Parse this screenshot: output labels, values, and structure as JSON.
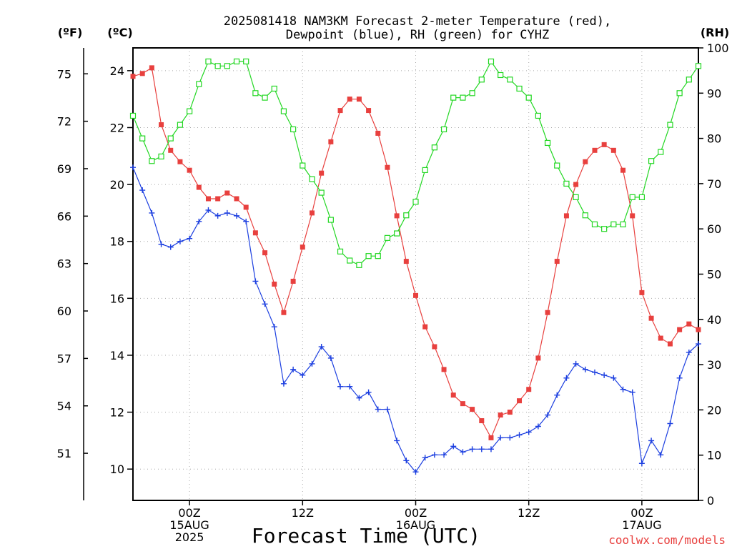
{
  "chart_data": {
    "type": "line",
    "title_lines": [
      "2025081418 NAM3KM Forecast 2-meter Temperature (red),",
      "Dewpoint (blue), RH (green) for CYHZ"
    ],
    "xlabel": "Forecast Time (UTC)",
    "credit": "coolwx.com/models",
    "units": {
      "fahrenheit": "(ºF)",
      "celsius": "(ºC)",
      "rh": "(RH)"
    },
    "x_ticks": [
      {
        "hour": 3,
        "lines": [
          "00Z",
          "15AUG",
          "2025"
        ]
      },
      {
        "hour": 15,
        "lines": [
          "12Z"
        ]
      },
      {
        "hour": 27,
        "lines": [
          "00Z",
          "16AUG"
        ]
      },
      {
        "hour": 39,
        "lines": [
          "12Z"
        ]
      },
      {
        "hour": 51,
        "lines": [
          "00Z",
          "17AUG"
        ]
      }
    ],
    "x_range": [
      -3,
      57
    ],
    "ylim_celsius": [
      8.9,
      24.8
    ],
    "celsius_ticks": [
      10,
      12,
      14,
      16,
      18,
      20,
      22,
      24
    ],
    "fahrenheit_ticks": [
      51,
      54,
      57,
      60,
      63,
      66,
      69,
      72,
      75
    ],
    "ylim_rh": [
      0,
      100
    ],
    "rh_ticks": [
      0,
      10,
      20,
      30,
      40,
      50,
      60,
      70,
      80,
      90,
      100
    ],
    "grid": true,
    "series": [
      {
        "name": "Temperature",
        "color": "#e8403e",
        "marker": "filled-square",
        "axis": "celsius",
        "x": [
          -3,
          -2,
          -1,
          0,
          1,
          2,
          3,
          4,
          5,
          6,
          7,
          8,
          9,
          10,
          11,
          12,
          13,
          14,
          15,
          16,
          17,
          18,
          19,
          20,
          21,
          22,
          23,
          24,
          25,
          26,
          27,
          28,
          29,
          30,
          31,
          32,
          33,
          34,
          35,
          36,
          37,
          38,
          39,
          40,
          41,
          42,
          43,
          44,
          45,
          46,
          47,
          48,
          49,
          50,
          51,
          52,
          53,
          54,
          55,
          56,
          57
        ],
        "values": [
          23.8,
          23.9,
          24.1,
          22.1,
          21.2,
          20.8,
          20.5,
          19.9,
          19.5,
          19.5,
          19.7,
          19.5,
          19.2,
          18.3,
          17.6,
          16.5,
          15.5,
          16.6,
          17.8,
          19.0,
          20.4,
          21.5,
          22.6,
          23.0,
          23.0,
          22.6,
          21.8,
          20.6,
          18.9,
          17.3,
          16.1,
          15.0,
          14.3,
          13.5,
          12.6,
          12.3,
          12.1,
          11.7,
          11.1,
          11.9,
          12.0,
          12.4,
          12.8,
          13.9,
          15.5,
          17.3,
          18.9,
          20.0,
          20.8,
          21.2,
          21.4,
          21.2,
          20.5,
          18.9,
          16.2,
          15.3,
          14.6,
          14.4,
          14.9,
          15.1,
          14.9
        ]
      },
      {
        "name": "Dewpoint",
        "color": "#1c3fe0",
        "marker": "plus",
        "axis": "celsius",
        "x": [
          -3,
          -2,
          -1,
          0,
          1,
          2,
          3,
          4,
          5,
          6,
          7,
          8,
          9,
          10,
          11,
          12,
          13,
          14,
          15,
          16,
          17,
          18,
          19,
          20,
          21,
          22,
          23,
          24,
          25,
          26,
          27,
          28,
          29,
          30,
          31,
          32,
          33,
          34,
          35,
          36,
          37,
          38,
          39,
          40,
          41,
          42,
          43,
          44,
          45,
          46,
          47,
          48,
          49,
          50,
          51,
          52,
          53,
          54,
          55,
          56,
          57
        ],
        "values": [
          20.6,
          19.8,
          19.0,
          17.9,
          17.8,
          18.0,
          18.1,
          18.7,
          19.1,
          18.9,
          19.0,
          18.9,
          18.7,
          16.6,
          15.8,
          15.0,
          13.0,
          13.5,
          13.3,
          13.7,
          14.3,
          13.9,
          12.9,
          12.9,
          12.5,
          12.7,
          12.1,
          12.1,
          11.0,
          10.3,
          9.9,
          10.4,
          10.5,
          10.5,
          10.8,
          10.6,
          10.7,
          10.7,
          10.7,
          11.1,
          11.1,
          11.2,
          11.3,
          11.5,
          11.9,
          12.6,
          13.2,
          13.7,
          13.5,
          13.4,
          13.3,
          13.2,
          12.8,
          12.7,
          10.2,
          11.0,
          10.5,
          11.6,
          13.2,
          14.1,
          14.4
        ]
      },
      {
        "name": "RH",
        "color": "#22d722",
        "marker": "open-square",
        "axis": "rh",
        "x": [
          -3,
          -2,
          -1,
          0,
          1,
          2,
          3,
          4,
          5,
          6,
          7,
          8,
          9,
          10,
          11,
          12,
          13,
          14,
          15,
          16,
          17,
          18,
          19,
          20,
          21,
          22,
          23,
          24,
          25,
          26,
          27,
          28,
          29,
          30,
          31,
          32,
          33,
          34,
          35,
          36,
          37,
          38,
          39,
          40,
          41,
          42,
          43,
          44,
          45,
          46,
          47,
          48,
          49,
          50,
          51,
          52,
          53,
          54,
          55,
          56,
          57
        ],
        "values": [
          85,
          80,
          75,
          76,
          80,
          83,
          86,
          92,
          97,
          96,
          96,
          97,
          97,
          90,
          89,
          91,
          86,
          82,
          74,
          71,
          68,
          62,
          55,
          53,
          52,
          54,
          54,
          58,
          59,
          63,
          66,
          73,
          78,
          82,
          89,
          89,
          90,
          93,
          97,
          94,
          93,
          91,
          89,
          85,
          79,
          74,
          70,
          67,
          63,
          61,
          60,
          61,
          61,
          67,
          67,
          75,
          77,
          83,
          90,
          93,
          96
        ]
      }
    ]
  }
}
